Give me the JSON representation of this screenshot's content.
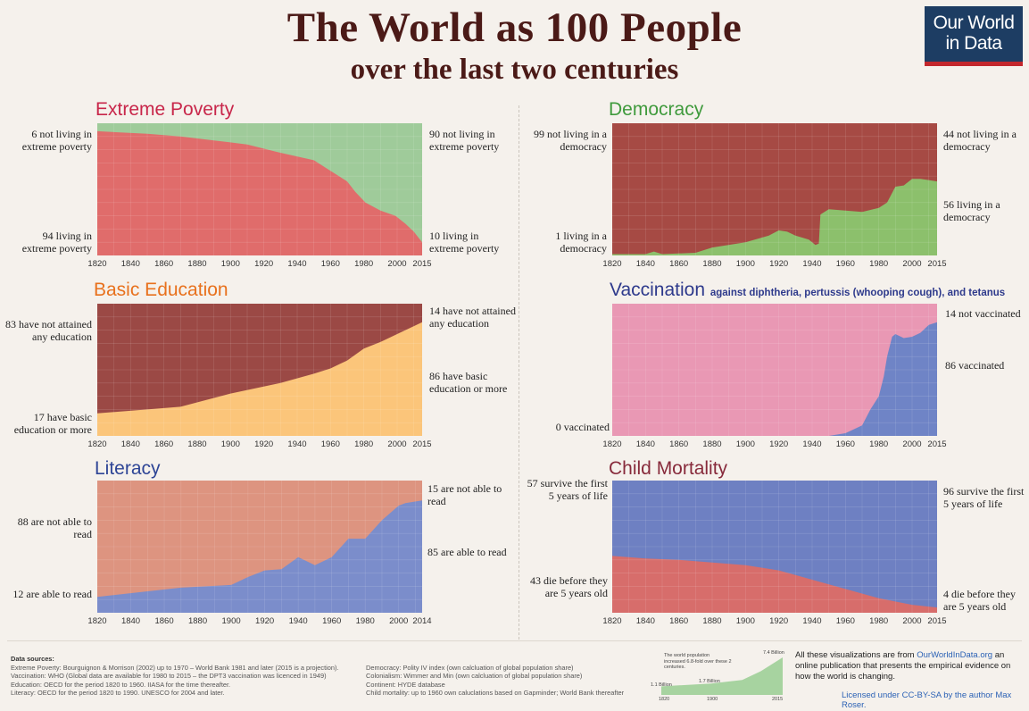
{
  "header": {
    "title": "The World as 100 People",
    "subtitle": "over the last two centuries",
    "logo_line1": "Our World",
    "logo_line2": "in Data"
  },
  "chart_data": [
    {
      "type": "area",
      "title": "Extreme Poverty",
      "x": [
        1820,
        1850,
        1870,
        1890,
        1910,
        1929,
        1950,
        1960,
        1970,
        1975,
        1981,
        1990,
        1999,
        2005,
        2010,
        2015
      ],
      "series": [
        {
          "name": "living in extreme poverty",
          "values": [
            94,
            92,
            90,
            87,
            84,
            78,
            72,
            64,
            56,
            48,
            40,
            34,
            30,
            24,
            18,
            10
          ]
        },
        {
          "name": "not living in extreme poverty",
          "values": [
            6,
            8,
            10,
            13,
            16,
            22,
            28,
            36,
            44,
            52,
            60,
            66,
            70,
            76,
            82,
            90
          ]
        }
      ],
      "xlim": [
        1820,
        2015
      ],
      "ylim": [
        0,
        100
      ],
      "colors": [
        "#e06c6b",
        "#9fcb9a"
      ],
      "labels": {
        "left_top": "6 not living in extreme poverty",
        "left_bottom": "94 living in extreme poverty",
        "right_top": "90 not living in extreme poverty",
        "right_bottom": "10 living in extreme poverty"
      }
    },
    {
      "type": "area",
      "title": "Democracy",
      "x": [
        1820,
        1840,
        1845,
        1850,
        1870,
        1880,
        1900,
        1914,
        1920,
        1925,
        1930,
        1938,
        1942,
        1944,
        1945,
        1950,
        1960,
        1970,
        1980,
        1985,
        1990,
        1995,
        2000,
        2005,
        2010,
        2015
      ],
      "series": [
        {
          "name": "living in a democracy",
          "values": [
            1,
            1,
            3,
            1,
            2,
            6,
            10,
            15,
            19,
            18,
            15,
            12,
            8,
            9,
            31,
            35,
            34,
            33,
            36,
            40,
            52,
            53,
            58,
            58,
            57,
            56
          ]
        },
        {
          "name": "not living in a democracy",
          "values": [
            99,
            99,
            97,
            99,
            98,
            94,
            90,
            85,
            81,
            82,
            85,
            88,
            92,
            91,
            69,
            65,
            66,
            67,
            64,
            60,
            48,
            47,
            42,
            42,
            43,
            44
          ]
        }
      ],
      "xlim": [
        1820,
        2015
      ],
      "ylim": [
        0,
        100
      ],
      "colors": [
        "#8cc06c",
        "#a64a44"
      ],
      "labels": {
        "left_top": "99 not living in a democracy",
        "left_bottom": "1 living in a democracy",
        "right_top": "44 not living in a democracy",
        "right_bottom": "56 living in a democracy"
      }
    },
    {
      "type": "area",
      "title": "Basic Education",
      "x": [
        1820,
        1850,
        1870,
        1900,
        1930,
        1950,
        1960,
        1970,
        1980,
        1990,
        2000,
        2015
      ],
      "series": [
        {
          "name": "have basic education or more",
          "values": [
            17,
            20,
            22,
            32,
            40,
            47,
            51,
            57,
            66,
            71,
            77,
            86
          ]
        },
        {
          "name": "have not attained any education",
          "values": [
            83,
            80,
            78,
            68,
            60,
            53,
            49,
            43,
            34,
            29,
            23,
            14
          ]
        }
      ],
      "xlim": [
        1820,
        2015
      ],
      "ylim": [
        0,
        100
      ],
      "colors": [
        "#fbc57a",
        "#9b4945"
      ],
      "labels": {
        "left_top": "83 have not attained any education",
        "left_bottom": "17 have basic education or more",
        "right_top": "14 have not attained any education",
        "right_bottom": "86 have basic education or more"
      }
    },
    {
      "type": "area",
      "title": "Vaccination",
      "subtitle": "against diphtheria, pertussis (whooping cough), and tetanus",
      "x": [
        1820,
        1950,
        1960,
        1970,
        1975,
        1980,
        1983,
        1985,
        1988,
        1990,
        1995,
        2000,
        2005,
        2010,
        2015
      ],
      "series": [
        {
          "name": "vaccinated",
          "values": [
            0,
            0,
            2,
            8,
            20,
            30,
            45,
            60,
            75,
            77,
            74,
            75,
            78,
            84,
            86
          ]
        },
        {
          "name": "not vaccinated",
          "values": [
            100,
            100,
            98,
            92,
            80,
            70,
            55,
            40,
            25,
            23,
            26,
            25,
            22,
            16,
            14
          ]
        }
      ],
      "xlim": [
        1820,
        2015
      ],
      "ylim": [
        0,
        100
      ],
      "colors": [
        "#6f84c6",
        "#e998b4"
      ],
      "labels": {
        "left_top": "",
        "left_bottom": "0 vaccinated",
        "right_top": "14 not vaccinated",
        "right_bottom": "86 vaccinated"
      }
    },
    {
      "type": "area",
      "title": "Literacy",
      "x": [
        1820,
        1870,
        1900,
        1910,
        1920,
        1930,
        1940,
        1950,
        1960,
        1970,
        1980,
        1990,
        2000,
        2004,
        2014
      ],
      "series": [
        {
          "name": "are able to read",
          "values": [
            12,
            19,
            21,
            27,
            32,
            33,
            42,
            36,
            42,
            56,
            56,
            70,
            81,
            83,
            85
          ]
        },
        {
          "name": "are not able to read",
          "values": [
            88,
            81,
            79,
            73,
            68,
            67,
            58,
            64,
            58,
            44,
            44,
            30,
            19,
            17,
            15
          ]
        }
      ],
      "xlim": [
        1820,
        2014
      ],
      "ylim": [
        0,
        100
      ],
      "colors": [
        "#7b8dcb",
        "#dd9480"
      ],
      "labels": {
        "left_top": "88 are not able to read",
        "left_bottom": "12 are able to read",
        "right_top": "15 are not able to read",
        "right_bottom": "85 are able to read"
      }
    },
    {
      "type": "area",
      "title": "Child Mortality",
      "x": [
        1820,
        1840,
        1860,
        1880,
        1900,
        1920,
        1940,
        1960,
        1980,
        2000,
        2015
      ],
      "series": [
        {
          "name": "die before they are 5 years old",
          "values": [
            43,
            41,
            40,
            38,
            36,
            32,
            25,
            18,
            11,
            6,
            4
          ]
        },
        {
          "name": "survive the first 5 years of life",
          "values": [
            57,
            59,
            60,
            62,
            64,
            68,
            75,
            82,
            89,
            94,
            96
          ]
        }
      ],
      "xlim": [
        1820,
        2015
      ],
      "ylim": [
        0,
        100
      ],
      "colors": [
        "#d76d6b",
        "#6e80c2"
      ],
      "labels": {
        "left_top": "57 survive the first 5 years of life",
        "left_bottom": "43 die before they are 5 years old",
        "right_top": "96 survive the first 5 years of life",
        "right_bottom": "4 die before they are 5 years old"
      }
    },
    {
      "type": "area",
      "title": "",
      "x": [
        1820,
        1900,
        1950,
        1980,
        2015
      ],
      "series": [
        {
          "name": "",
          "values": [
            1.1,
            1.7,
            2.5,
            4.4,
            7.4
          ]
        }
      ],
      "colors": [
        "#a7d3a0"
      ],
      "annotations": [
        "The world population increased 6.8-fold over these 2 centuries.",
        "1.1 Billion",
        "1.7 Billion",
        "7.4 Billion"
      ],
      "tick_labels": [
        "1820",
        "1900",
        "2015"
      ]
    }
  ],
  "sources": {
    "heading": "Data sources:",
    "col1": [
      "Extreme Poverty: Bourguignon & Morrison (2002) up to 1970 – World Bank 1981 and later (2015 is a projection).",
      "Vaccination: WHO (Global data are available for 1980 to 2015 – the DPT3 vaccination was licenced in 1949)",
      "Education: OECD for the period 1820 to 1960. IIASA for the time thereafter.",
      "Literacy: OECD for the period 1820 to 1990. UNESCO for 2004 and later."
    ],
    "col2": [
      "Democracy: Polity IV index (own calcluation of global population share)",
      "Colonialism: Wimmer and Min (own calcluation of global population share)",
      "Continent: HYDE database",
      "Child mortality: up to 1960 own caluclations based on Gapminder; World Bank thereafter"
    ]
  },
  "footer": {
    "about_pre": "All these visualizations are from ",
    "about_link": "OurWorldInData.org",
    "about_post": " an online publication that presents the empirical evidence on how the world is changing.",
    "license": "Licensed under CC-BY-SA by the author Max Roser."
  }
}
